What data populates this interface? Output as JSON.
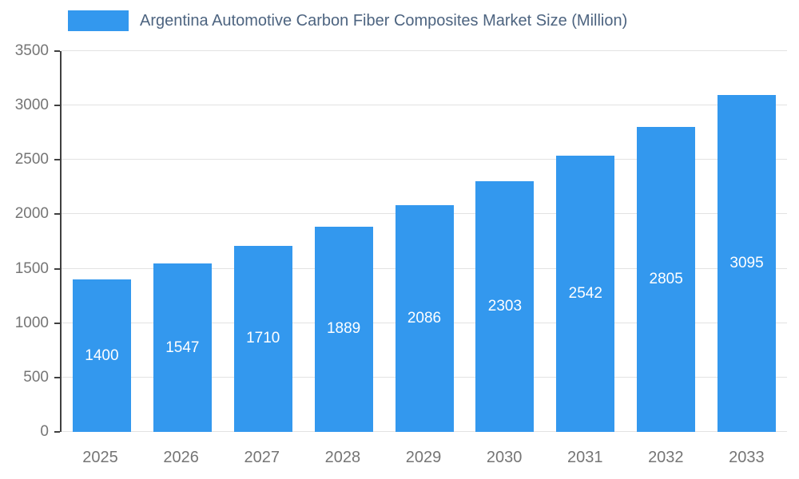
{
  "chart_data": {
    "type": "bar",
    "title": "Argentina Automotive Carbon Fiber Composites Market Size (Million)",
    "categories": [
      "2025",
      "2026",
      "2027",
      "2028",
      "2029",
      "2030",
      "2031",
      "2032",
      "2033"
    ],
    "values": [
      1400,
      1547,
      1710,
      1889,
      2086,
      2303,
      2542,
      2805,
      3095
    ],
    "xlabel": "",
    "ylabel": "",
    "ylim": [
      0,
      3500
    ],
    "ytick_step": 500,
    "yticks": [
      0,
      500,
      1000,
      1500,
      2000,
      2500,
      3000,
      3500
    ],
    "grid": true,
    "legend_position": "top",
    "bar_color": "#3398ee",
    "value_label_color": "#ffffff",
    "axis_label_color": "#757575"
  }
}
